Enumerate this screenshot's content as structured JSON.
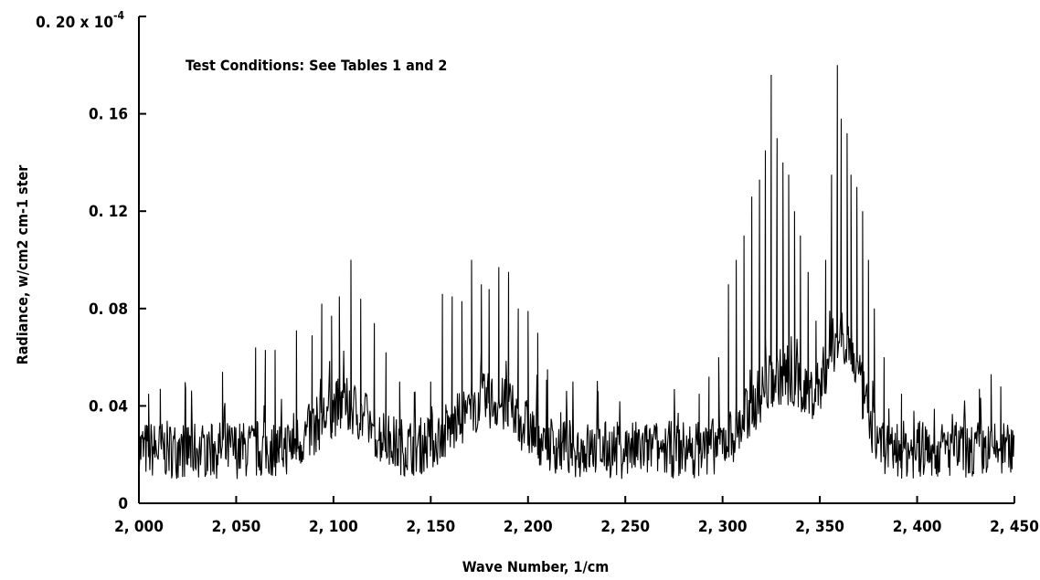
{
  "chart_data": {
    "type": "line",
    "xlabel": "Wave Number,  1/cm",
    "ylabel": "Radiance,  w/cm2 cm-1 ster",
    "annotation": "Test Conditions:  See Tables 1 and 2",
    "xlim": [
      2000,
      2450
    ],
    "ylim": [
      0,
      0.2
    ],
    "y_multiplier_label": "0. 20 x 10-4",
    "x_ticks": [
      {
        "value": 2000,
        "label": "2, 000"
      },
      {
        "value": 2050,
        "label": "2, 050"
      },
      {
        "value": 2100,
        "label": "2, 100"
      },
      {
        "value": 2150,
        "label": "2, 150"
      },
      {
        "value": 2200,
        "label": "2, 200"
      },
      {
        "value": 2250,
        "label": "2, 250"
      },
      {
        "value": 2300,
        "label": "2, 300"
      },
      {
        "value": 2350,
        "label": "2, 350"
      },
      {
        "value": 2400,
        "label": "2, 400"
      },
      {
        "value": 2450,
        "label": "2, 450"
      }
    ],
    "y_ticks": [
      {
        "value": 0,
        "label": "0"
      },
      {
        "value": 0.04,
        "label": "0. 04"
      },
      {
        "value": 0.08,
        "label": "0. 08"
      },
      {
        "value": 0.12,
        "label": "0. 12"
      },
      {
        "value": 0.16,
        "label": "0. 16"
      },
      {
        "value": 0.2,
        "label": "0. 20 x 10"
      }
    ],
    "baseline": 0.022,
    "noise_amplitude": 0.012,
    "peaks": [
      {
        "x": 2005,
        "y": 0.045
      },
      {
        "x": 2011,
        "y": 0.047
      },
      {
        "x": 2024,
        "y": 0.047
      },
      {
        "x": 2043,
        "y": 0.054
      },
      {
        "x": 2060,
        "y": 0.064
      },
      {
        "x": 2065,
        "y": 0.063
      },
      {
        "x": 2070,
        "y": 0.063
      },
      {
        "x": 2081,
        "y": 0.071
      },
      {
        "x": 2089,
        "y": 0.069
      },
      {
        "x": 2094,
        "y": 0.082
      },
      {
        "x": 2099,
        "y": 0.077
      },
      {
        "x": 2103,
        "y": 0.085
      },
      {
        "x": 2109,
        "y": 0.1
      },
      {
        "x": 2114,
        "y": 0.084
      },
      {
        "x": 2121,
        "y": 0.074
      },
      {
        "x": 2127,
        "y": 0.062
      },
      {
        "x": 2134,
        "y": 0.05
      },
      {
        "x": 2150,
        "y": 0.05
      },
      {
        "x": 2156,
        "y": 0.086
      },
      {
        "x": 2161,
        "y": 0.085
      },
      {
        "x": 2166,
        "y": 0.083
      },
      {
        "x": 2171,
        "y": 0.1
      },
      {
        "x": 2176,
        "y": 0.09
      },
      {
        "x": 2180,
        "y": 0.088
      },
      {
        "x": 2185,
        "y": 0.097
      },
      {
        "x": 2190,
        "y": 0.095
      },
      {
        "x": 2195,
        "y": 0.08
      },
      {
        "x": 2200,
        "y": 0.079
      },
      {
        "x": 2205,
        "y": 0.07
      },
      {
        "x": 2210,
        "y": 0.055
      },
      {
        "x": 2236,
        "y": 0.046
      },
      {
        "x": 2288,
        "y": 0.045
      },
      {
        "x": 2293,
        "y": 0.052
      },
      {
        "x": 2298,
        "y": 0.06
      },
      {
        "x": 2303,
        "y": 0.09
      },
      {
        "x": 2307,
        "y": 0.1
      },
      {
        "x": 2311,
        "y": 0.11
      },
      {
        "x": 2315,
        "y": 0.126
      },
      {
        "x": 2319,
        "y": 0.133
      },
      {
        "x": 2322,
        "y": 0.145
      },
      {
        "x": 2325,
        "y": 0.176
      },
      {
        "x": 2328,
        "y": 0.15
      },
      {
        "x": 2331,
        "y": 0.14
      },
      {
        "x": 2334,
        "y": 0.135
      },
      {
        "x": 2337,
        "y": 0.12
      },
      {
        "x": 2340,
        "y": 0.11
      },
      {
        "x": 2344,
        "y": 0.095
      },
      {
        "x": 2348,
        "y": 0.075
      },
      {
        "x": 2353,
        "y": 0.1
      },
      {
        "x": 2356,
        "y": 0.135
      },
      {
        "x": 2359,
        "y": 0.18
      },
      {
        "x": 2361,
        "y": 0.158
      },
      {
        "x": 2364,
        "y": 0.152
      },
      {
        "x": 2366,
        "y": 0.135
      },
      {
        "x": 2369,
        "y": 0.13
      },
      {
        "x": 2372,
        "y": 0.12
      },
      {
        "x": 2375,
        "y": 0.1
      },
      {
        "x": 2378,
        "y": 0.08
      },
      {
        "x": 2383,
        "y": 0.06
      },
      {
        "x": 2392,
        "y": 0.045
      },
      {
        "x": 2432,
        "y": 0.047
      },
      {
        "x": 2438,
        "y": 0.053
      },
      {
        "x": 2443,
        "y": 0.048
      }
    ]
  }
}
